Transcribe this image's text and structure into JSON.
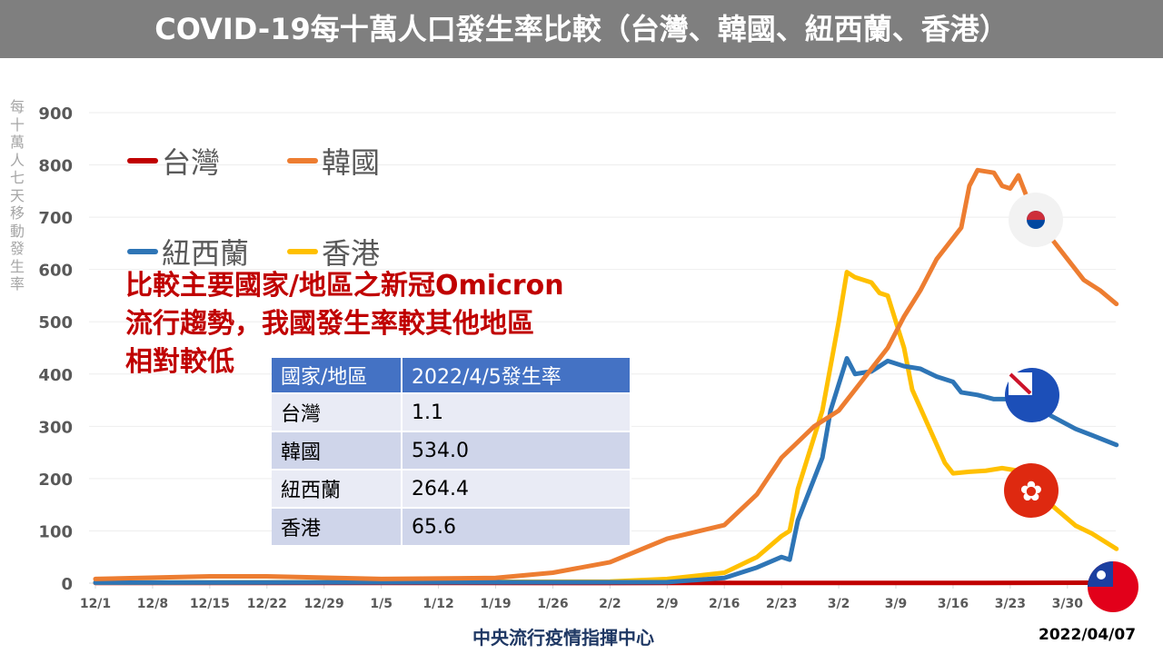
{
  "title": "COVID-19每十萬人口發生率比較（台灣、韓國、紐西蘭、香港）",
  "note": [
    "比較主要國家/地區之新冠Omicron",
    "流行趨勢，我國發生率較其他地區",
    "相對較低"
  ],
  "table": {
    "headers": [
      "國家/地區",
      "2022/4/5發生率"
    ],
    "rows": [
      [
        "台灣",
        "1.1"
      ],
      [
        "韓國",
        "534.0"
      ],
      [
        "紐西蘭",
        "264.4"
      ],
      [
        "香港",
        "65.6"
      ]
    ]
  },
  "footer": "中央流行疫情指揮中心",
  "date": "2022/04/07",
  "chart_data": {
    "type": "line",
    "title": "",
    "ylabel": "每十萬人七天移動發生率",
    "xlabel": "",
    "ylim": [
      0,
      900
    ],
    "yticks": [
      0,
      100,
      200,
      300,
      400,
      500,
      600,
      700,
      800,
      900
    ],
    "xticks": [
      "12/1",
      "12/8",
      "12/15",
      "12/22",
      "12/29",
      "1/5",
      "1/12",
      "1/19",
      "1/26",
      "2/2",
      "2/9",
      "2/16",
      "2/23",
      "3/2",
      "3/9",
      "3/16",
      "3/23",
      "3/30"
    ],
    "xtick_dates": [
      "2021-12-01",
      "2021-12-08",
      "2021-12-15",
      "2021-12-22",
      "2021-12-29",
      "2022-01-05",
      "2022-01-12",
      "2022-01-19",
      "2022-01-26",
      "2022-02-02",
      "2022-02-09",
      "2022-02-16",
      "2022-02-23",
      "2022-03-02",
      "2022-03-09",
      "2022-03-16",
      "2022-03-23",
      "2022-03-30"
    ],
    "grid": true,
    "legend": "top-left",
    "series": [
      {
        "name": "台灣",
        "color": "#c00000",
        "points": [
          [
            "2021-12-01",
            0.5
          ],
          [
            "2022-02-01",
            0.3
          ],
          [
            "2022-03-20",
            0.5
          ],
          [
            "2022-04-03",
            0.8
          ],
          [
            "2022-04-05",
            1.1
          ]
        ]
      },
      {
        "name": "韓國",
        "color": "#ed7d31",
        "points": [
          [
            "2021-12-01",
            8
          ],
          [
            "2021-12-15",
            13
          ],
          [
            "2021-12-22",
            13
          ],
          [
            "2022-01-05",
            8
          ],
          [
            "2022-01-19",
            10
          ],
          [
            "2022-01-26",
            20
          ],
          [
            "2022-02-02",
            40
          ],
          [
            "2022-02-09",
            85
          ],
          [
            "2022-02-16",
            111
          ],
          [
            "2022-02-20",
            170
          ],
          [
            "2022-02-23",
            240
          ],
          [
            "2022-02-27",
            300
          ],
          [
            "2022-03-02",
            330
          ],
          [
            "2022-03-05",
            390
          ],
          [
            "2022-03-08",
            450
          ],
          [
            "2022-03-10",
            510
          ],
          [
            "2022-03-12",
            560
          ],
          [
            "2022-03-14",
            620
          ],
          [
            "2022-03-16",
            660
          ],
          [
            "2022-03-17",
            680
          ],
          [
            "2022-03-18",
            760
          ],
          [
            "2022-03-19",
            790
          ],
          [
            "2022-03-21",
            785
          ],
          [
            "2022-03-22",
            760
          ],
          [
            "2022-03-23",
            755
          ],
          [
            "2022-03-24",
            780
          ],
          [
            "2022-03-26",
            700
          ],
          [
            "2022-03-28",
            660
          ],
          [
            "2022-03-30",
            620
          ],
          [
            "2022-04-01",
            580
          ],
          [
            "2022-04-03",
            560
          ],
          [
            "2022-04-05",
            534
          ]
        ]
      },
      {
        "name": "紐西蘭",
        "color": "#2e75b6",
        "points": [
          [
            "2021-12-01",
            1
          ],
          [
            "2022-02-09",
            2
          ],
          [
            "2022-02-16",
            10
          ],
          [
            "2022-02-20",
            30
          ],
          [
            "2022-02-23",
            50
          ],
          [
            "2022-02-24",
            45
          ],
          [
            "2022-02-25",
            120
          ],
          [
            "2022-02-28",
            240
          ],
          [
            "2022-03-01",
            330
          ],
          [
            "2022-03-03",
            430
          ],
          [
            "2022-03-04",
            400
          ],
          [
            "2022-03-06",
            405
          ],
          [
            "2022-03-08",
            425
          ],
          [
            "2022-03-10",
            415
          ],
          [
            "2022-03-12",
            410
          ],
          [
            "2022-03-14",
            395
          ],
          [
            "2022-03-16",
            385
          ],
          [
            "2022-03-17",
            365
          ],
          [
            "2022-03-19",
            360
          ],
          [
            "2022-03-21",
            352
          ],
          [
            "2022-03-23",
            352
          ],
          [
            "2022-03-25",
            350
          ],
          [
            "2022-03-28",
            320
          ],
          [
            "2022-03-31",
            295
          ],
          [
            "2022-04-02",
            283
          ],
          [
            "2022-04-05",
            264.4
          ]
        ]
      },
      {
        "name": "香港",
        "color": "#ffc000",
        "points": [
          [
            "2021-12-01",
            1
          ],
          [
            "2022-02-02",
            3
          ],
          [
            "2022-02-09",
            8
          ],
          [
            "2022-02-16",
            20
          ],
          [
            "2022-02-20",
            50
          ],
          [
            "2022-02-23",
            90
          ],
          [
            "2022-02-24",
            100
          ],
          [
            "2022-02-25",
            180
          ],
          [
            "2022-02-28",
            330
          ],
          [
            "2022-03-02",
            500
          ],
          [
            "2022-03-03",
            595
          ],
          [
            "2022-03-04",
            585
          ],
          [
            "2022-03-06",
            575
          ],
          [
            "2022-03-07",
            555
          ],
          [
            "2022-03-08",
            550
          ],
          [
            "2022-03-10",
            450
          ],
          [
            "2022-03-11",
            370
          ],
          [
            "2022-03-13",
            300
          ],
          [
            "2022-03-15",
            230
          ],
          [
            "2022-03-16",
            210
          ],
          [
            "2022-03-18",
            213
          ],
          [
            "2022-03-20",
            215
          ],
          [
            "2022-03-22",
            220
          ],
          [
            "2022-03-24",
            215
          ],
          [
            "2022-03-26",
            180
          ],
          [
            "2022-03-28",
            150
          ],
          [
            "2022-03-31",
            110
          ],
          [
            "2022-04-02",
            95
          ],
          [
            "2022-04-05",
            65.6
          ]
        ]
      }
    ]
  }
}
